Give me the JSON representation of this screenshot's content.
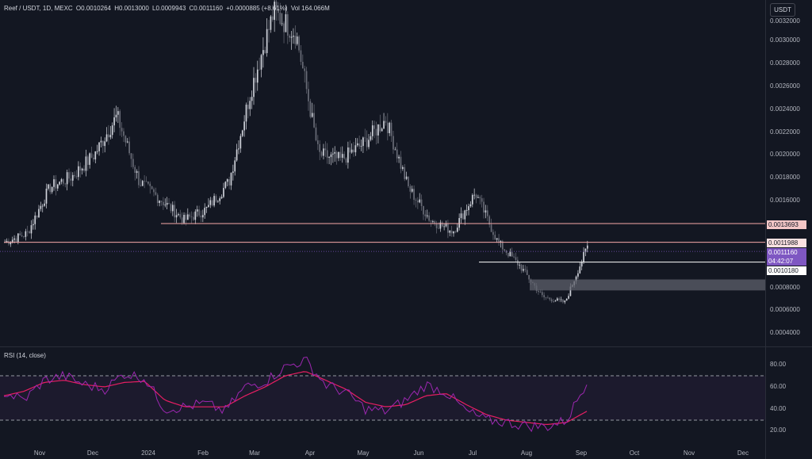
{
  "legend": {
    "symbol": "Reef / USDT, 1D, MEXC",
    "open": "O0.0010264",
    "high": "H0.0013000",
    "low": "L0.0009943",
    "close": "C0.0011160",
    "change": "+0.0000885 (+8.61%)",
    "volume": "Vol 164.066M"
  },
  "currency_button": "USDT",
  "price_axis": [
    "0.0032000",
    "0.0030000",
    "0.0028000",
    "0.0026000",
    "0.0024000",
    "0.0022000",
    "0.0020000",
    "0.0018000",
    "0.0016000",
    "0.0014000",
    "0.0012000",
    "0.0010000",
    "0.0008000",
    "0.0006000",
    "0.0004000"
  ],
  "price_tags": {
    "level_1": "0.0013693",
    "level_2": "0.0011988",
    "last_price": "0.0011160",
    "countdown": "04:42:07",
    "level_3": "0.0010180"
  },
  "rsi": {
    "title": "RSI (14, close)",
    "axis": [
      "80.00",
      "60.00",
      "40.00",
      "20.00"
    ]
  },
  "time_axis": [
    "Nov",
    "Dec",
    "2024",
    "Feb",
    "Mar",
    "Apr",
    "May",
    "Jun",
    "Jul",
    "Aug",
    "Sep",
    "Oct",
    "Nov",
    "Dec"
  ],
  "colors": {
    "background": "#131722",
    "candle_up": "#d1d4dc",
    "candle_down": "#6a6d78",
    "rsi_line": "#9c27b0",
    "rsi_ma": "#e91e63",
    "level_line": "#f7a8a8",
    "last_price_bg": "#7e57c2",
    "zone": "#5d606b"
  },
  "chart_data": {
    "type": "candlestick",
    "title": "Reef / USDT, 1D, MEXC",
    "x_categories": [
      "Nov",
      "Dec",
      "2024",
      "Feb",
      "Mar",
      "Apr",
      "May",
      "Jun",
      "Jul",
      "Aug",
      "Sep"
    ],
    "close_series": [
      0.0012,
      0.00128,
      0.0017,
      0.0018,
      0.002,
      0.00235,
      0.00175,
      0.00158,
      0.0014,
      0.0015,
      0.00175,
      0.0026,
      0.0033,
      0.0031,
      0.002,
      0.00195,
      0.0021,
      0.00232,
      0.0017,
      0.0014,
      0.0013,
      0.00165,
      0.0012,
      0.00098,
      0.0007,
      0.00065,
      0.00116
    ],
    "horizontal_levels": [
      0.0013693,
      0.0011988,
      0.001018
    ],
    "zone": [
      0.00076,
      0.00086
    ],
    "rsi_series": [
      55,
      48,
      66,
      70,
      62,
      58,
      72,
      68,
      40,
      42,
      45,
      38,
      60,
      65,
      78,
      84,
      62,
      55,
      40,
      38,
      48,
      62,
      55,
      38,
      30,
      28,
      25,
      24,
      30,
      65
    ],
    "rsi_ma_series": [
      52,
      56,
      64,
      66,
      62,
      60,
      64,
      65,
      48,
      42,
      42,
      42,
      52,
      60,
      70,
      74,
      66,
      58,
      46,
      42,
      44,
      52,
      54,
      44,
      35,
      30,
      28,
      26,
      28,
      38
    ],
    "rsi_levels": [
      70,
      30
    ],
    "ylim": [
      0.0003,
      0.00335
    ]
  }
}
